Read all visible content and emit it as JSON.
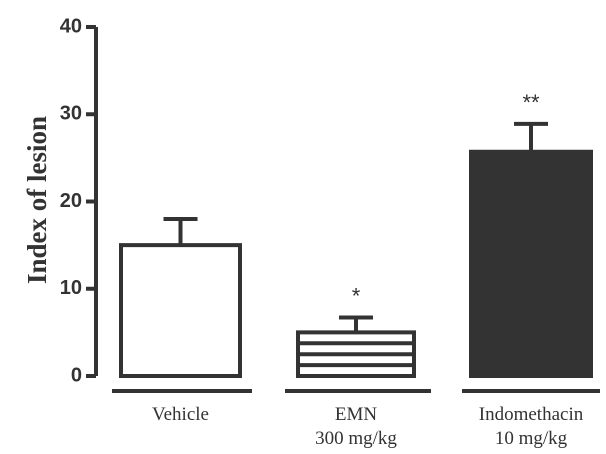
{
  "chart_data": {
    "type": "bar",
    "ylabel": "Index of lesion",
    "ylim": [
      0,
      40
    ],
    "yticks": [
      0,
      10,
      20,
      30,
      40
    ],
    "categories": [
      {
        "lines": [
          "Vehicle"
        ]
      },
      {
        "lines": [
          "EMN",
          "300 mg/kg"
        ]
      },
      {
        "lines": [
          "Indomethacin",
          "10 mg/kg"
        ]
      }
    ],
    "values": [
      15,
      5,
      25.7
    ],
    "errors": [
      3,
      1.7,
      3.2
    ],
    "significance": [
      "",
      "*",
      "**"
    ],
    "bar_styles": [
      "open",
      "striped",
      "filled"
    ],
    "colors": {
      "ink": "#333333",
      "fill": "#333333",
      "open": "#ffffff"
    }
  }
}
